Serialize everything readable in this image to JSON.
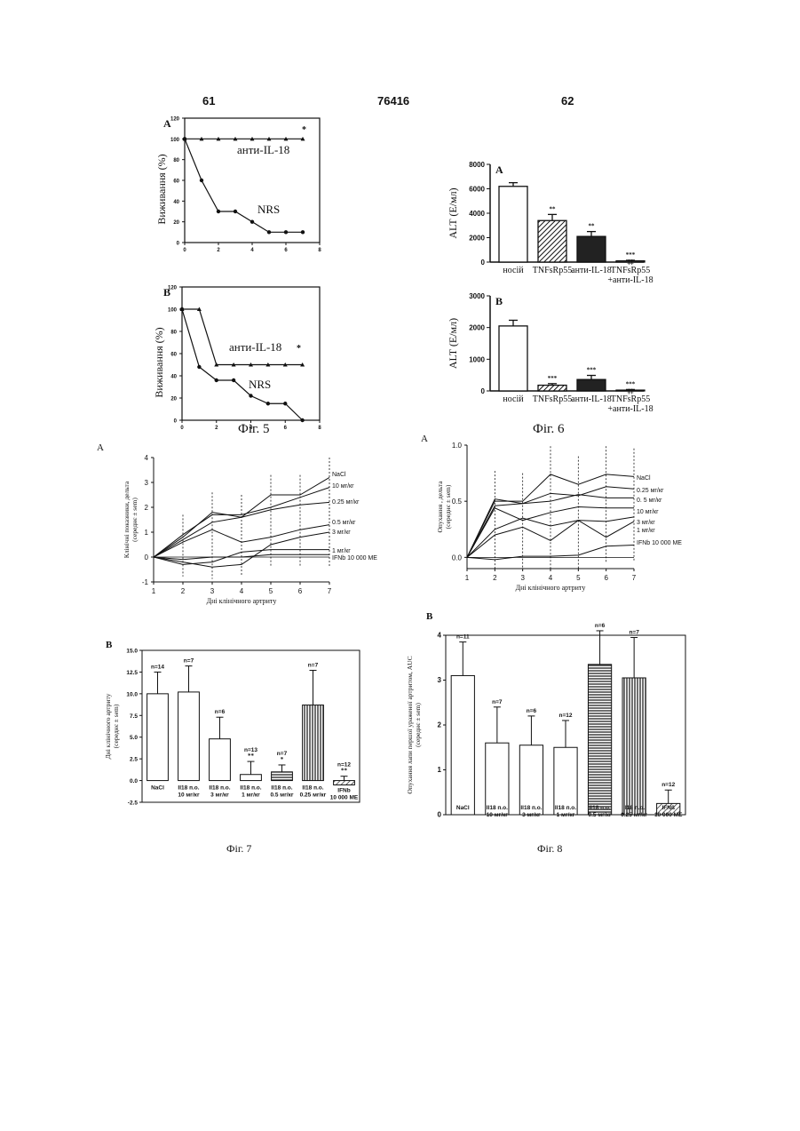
{
  "header": {
    "left_page": "61",
    "patent_no": "76416",
    "right_page": "62"
  },
  "fig5": {
    "caption": "Фіг. 5",
    "chart_data": [
      {
        "type": "line",
        "panel": "A",
        "ylabel": "Виживання (%)",
        "ylim": [
          0,
          120
        ],
        "xlim": [
          0,
          8
        ],
        "yticks": [
          "0",
          "20",
          "40",
          "60",
          "80",
          "100",
          "120"
        ],
        "xticks": [
          "0",
          "2",
          "4",
          "6",
          "8"
        ],
        "series": [
          {
            "name": "анти-IL-18",
            "x": [
              0,
              1,
              2,
              3,
              4,
              5,
              6,
              7
            ],
            "y": [
              100,
              100,
              100,
              100,
              100,
              100,
              100,
              100
            ]
          },
          {
            "name": "NRS",
            "x": [
              0,
              1,
              2,
              3,
              4,
              5,
              6,
              7
            ],
            "y": [
              100,
              60,
              30,
              30,
              20,
              10,
              10,
              10
            ]
          }
        ],
        "annotations": [
          "*"
        ]
      },
      {
        "type": "line",
        "panel": "B",
        "ylabel": "Виживання (%)",
        "ylim": [
          0,
          120
        ],
        "xlim": [
          0,
          8
        ],
        "yticks": [
          "0",
          "20",
          "40",
          "60",
          "80",
          "100",
          "120"
        ],
        "xticks": [
          "0",
          "2",
          "4",
          "6",
          "8"
        ],
        "series": [
          {
            "name": "анти-IL-18",
            "x": [
              0,
              1,
              2,
              3,
              4,
              5,
              6,
              7
            ],
            "y": [
              100,
              100,
              50,
              50,
              50,
              50,
              50,
              50
            ]
          },
          {
            "name": "NRS",
            "x": [
              0,
              1,
              2,
              3,
              4,
              5,
              6,
              7
            ],
            "y": [
              100,
              48,
              36,
              36,
              22,
              15,
              15,
              0
            ]
          }
        ],
        "annotations": [
          "*"
        ]
      }
    ]
  },
  "fig6": {
    "caption": "Фіг. 6",
    "chart_data": [
      {
        "type": "bar",
        "panel": "A",
        "ylabel": "ALT (Е/мл)",
        "ylim": [
          0,
          8000
        ],
        "yticks": [
          "0",
          "2000",
          "4000",
          "6000",
          "8000"
        ],
        "categories": [
          "носій",
          "TNFsRp55",
          "анти-IL-18",
          "TNFsRp55 +анти-IL-18"
        ],
        "values": [
          6200,
          3400,
          2100,
          100
        ],
        "errors": [
          300,
          500,
          400,
          50
        ],
        "annotations": [
          "",
          "**",
          "**",
          "*** ‡‡"
        ]
      },
      {
        "type": "bar",
        "panel": "B",
        "ylabel": "ALT (Е/мл)",
        "ylim": [
          0,
          3000
        ],
        "yticks": [
          "0",
          "1000",
          "2000",
          "3000"
        ],
        "categories": [
          "носій",
          "TNFsRp55",
          "анти-IL-18",
          "TNFsRp55 +анти-IL-18"
        ],
        "values": [
          2050,
          180,
          360,
          25
        ],
        "errors": [
          180,
          50,
          130,
          20
        ],
        "annotations": [
          "",
          "***",
          "***",
          "*** ‡‡"
        ]
      }
    ]
  },
  "fig7": {
    "caption": "Фіг. 7",
    "chart_data": [
      {
        "type": "line",
        "panel": "A",
        "ylabel": "Клінічні показники, дельта (середнє ± sem)",
        "xlabel": "Дні клінічного артриту",
        "ylim": [
          -1,
          4
        ],
        "xlim": [
          1,
          7
        ],
        "yticks": [
          "-1",
          "0",
          "1",
          "2",
          "3",
          "4"
        ],
        "xticks": [
          "1",
          "2",
          "3",
          "4",
          "5",
          "6",
          "7"
        ],
        "series": [
          {
            "name": "NaCl",
            "x": [
              1,
              2,
              3,
              4,
              5,
              6,
              7
            ],
            "y": [
              0,
              0.8,
              1.8,
              1.6,
              2.5,
              2.5,
              3.2
            ]
          },
          {
            "name": "10 мг/кг",
            "x": [
              1,
              2,
              3,
              4,
              5,
              6,
              7
            ],
            "y": [
              0,
              0.9,
              1.7,
              1.7,
              2.0,
              2.4,
              2.8
            ]
          },
          {
            "name": "0.25 мг/кг",
            "x": [
              1,
              2,
              3,
              4,
              5,
              6,
              7
            ],
            "y": [
              0,
              0.7,
              1.4,
              1.6,
              1.9,
              2.1,
              2.2
            ]
          },
          {
            "name": "0.5 мг/кг",
            "x": [
              1,
              2,
              3,
              4,
              5,
              6,
              7
            ],
            "y": [
              0,
              0.6,
              1.1,
              0.6,
              0.8,
              1.1,
              1.3
            ]
          },
          {
            "name": "3 мг/кг",
            "x": [
              1,
              2,
              3,
              4,
              5,
              6,
              7
            ],
            "y": [
              0,
              -0.2,
              -0.4,
              -0.3,
              0.5,
              0.8,
              1.0
            ]
          },
          {
            "name": "1 мг/кг",
            "x": [
              1,
              2,
              3,
              4,
              5,
              6,
              7
            ],
            "y": [
              0,
              -0.3,
              -0.2,
              0.2,
              0.3,
              0.3,
              0.3
            ]
          },
          {
            "name": "IFNb 10 000 МЕ",
            "x": [
              1,
              2,
              3,
              4,
              5,
              6,
              7
            ],
            "y": [
              0,
              -0.1,
              0.0,
              0.0,
              0.1,
              0.1,
              0.1
            ]
          }
        ]
      },
      {
        "type": "bar",
        "panel": "B",
        "ylabel": "Дні клінічного артриту (середнє ± sem)",
        "ylim": [
          -2.5,
          15.0
        ],
        "yticks": [
          "-2.5",
          "0.0",
          "2.5",
          "5.0",
          "7.5",
          "10.0",
          "12.5",
          "15.0"
        ],
        "categories": [
          "NaCl",
          "Il18 п.о. 10 мг/кг",
          "Il18 п.о. 3 мг/кг",
          "Il18 п.о. 1 мг/кг",
          "Il18 п.о. 0.5 мг/кг",
          "Il18 п.о. 0.25 мг/кг",
          "IFNb 10 000 МЕ"
        ],
        "values": [
          10.0,
          10.2,
          4.8,
          0.7,
          1.0,
          8.7,
          -0.5
        ],
        "errors": [
          2.5,
          3.0,
          2.5,
          1.5,
          0.8,
          4.0,
          0.5
        ],
        "labels": [
          "n=14",
          "n=7",
          "n=6",
          "n=13",
          "n=7",
          "n=7",
          "n=12"
        ],
        "stars": [
          "",
          "",
          "",
          "**",
          "*",
          "",
          "**"
        ]
      }
    ]
  },
  "fig8": {
    "caption": "Фіг. 8",
    "chart_data": [
      {
        "type": "line",
        "panel": "A",
        "ylabel": "Опухання , дельта (середнє ± sem)",
        "xlabel": "Дні клінічного артриту",
        "ylim": [
          -0.1,
          1.0
        ],
        "xlim": [
          1,
          7
        ],
        "yticks": [
          "0.0",
          "0.5",
          "1.0"
        ],
        "xticks": [
          "1",
          "2",
          "3",
          "4",
          "5",
          "6",
          "7"
        ],
        "series": [
          {
            "name": "NaCl",
            "x": [
              1,
              2,
              3,
              4,
              5,
              6,
              7
            ],
            "y": [
              0,
              0.5,
              0.5,
              0.74,
              0.65,
              0.74,
              0.72
            ]
          },
          {
            "name": "0.25 мг/кг",
            "x": [
              1,
              2,
              3,
              4,
              5,
              6,
              7
            ],
            "y": [
              0,
              0.52,
              0.48,
              0.57,
              0.55,
              0.63,
              0.61
            ]
          },
          {
            "name": "0. 5 мг/кг",
            "x": [
              1,
              2,
              3,
              4,
              5,
              6,
              7
            ],
            "y": [
              0,
              0.46,
              0.48,
              0.5,
              0.56,
              0.53,
              0.53
            ]
          },
          {
            "name": "10 мг/кг",
            "x": [
              1,
              2,
              3,
              4,
              5,
              6,
              7
            ],
            "y": [
              0,
              0.44,
              0.33,
              0.4,
              0.45,
              0.44,
              0.44
            ]
          },
          {
            "name": "3 мг/кг",
            "x": [
              1,
              2,
              3,
              4,
              5,
              6,
              7
            ],
            "y": [
              0,
              0.25,
              0.35,
              0.28,
              0.33,
              0.32,
              0.36
            ]
          },
          {
            "name": "1 мг/кг",
            "x": [
              1,
              2,
              3,
              4,
              5,
              6,
              7
            ],
            "y": [
              0,
              0.2,
              0.27,
              0.15,
              0.33,
              0.18,
              0.32
            ]
          },
          {
            "name": "IFNb 10 000 МЕ",
            "x": [
              1,
              2,
              3,
              4,
              5,
              6,
              7
            ],
            "y": [
              0,
              -0.02,
              0.01,
              0.01,
              0.02,
              0.1,
              0.11
            ]
          }
        ]
      },
      {
        "type": "bar",
        "panel": "B",
        "ylabel": "Опухання лапи першої ураженої артритом, AUC (середнє ± sem)",
        "ylim": [
          0,
          4
        ],
        "yticks": [
          "0",
          "1",
          "2",
          "3",
          "4"
        ],
        "categories": [
          "NaCl",
          "Il18 п.о. 10 мг/кг",
          "Il18 п.о. 3 мг/кг",
          "Il18 п.о. 1 мг/кг",
          "Il18 п.о. 0.5 мг/кг",
          "Il18 п.о. 0.25 мг/кг",
          "IFNß 10 000 МЕ"
        ],
        "values": [
          3.1,
          1.6,
          1.55,
          1.5,
          3.35,
          3.05,
          0.25
        ],
        "errors": [
          0.75,
          0.8,
          0.65,
          0.6,
          0.75,
          0.9,
          0.3
        ],
        "labels": [
          "n=11",
          "n=7",
          "n=6",
          "n=12",
          "n=6",
          "n=7",
          "n=12"
        ]
      }
    ]
  }
}
